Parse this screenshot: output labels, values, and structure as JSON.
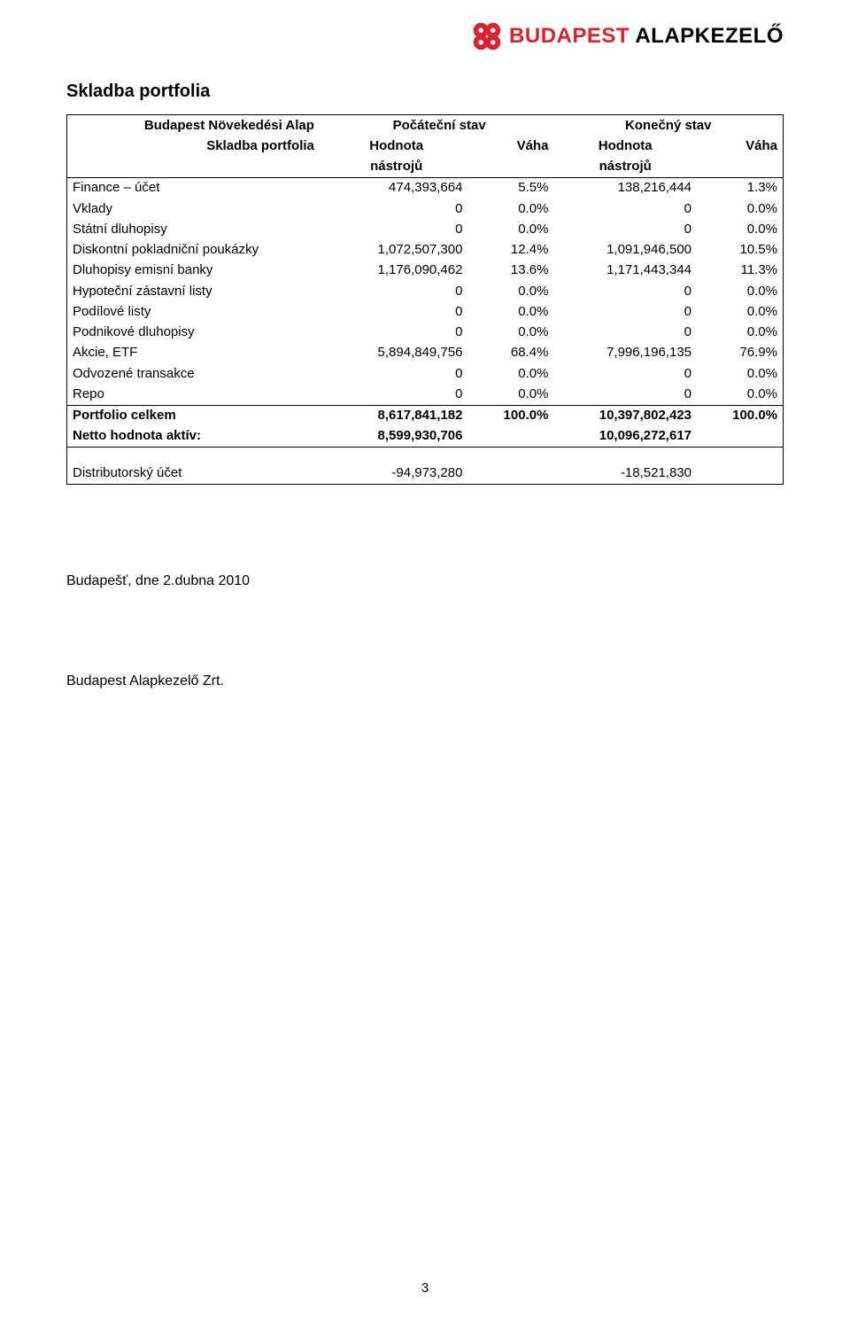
{
  "logo": {
    "wordmark_a": "BUDAPEST",
    "wordmark_b": "ALAPKEZELŐ",
    "brand_red": "#d9232e"
  },
  "section_title": "Skladba portfolia",
  "table": {
    "header1": {
      "fund": "Budapest Növekedési Alap",
      "start": "Počáteční stav",
      "end": "Konečný stav"
    },
    "header2": {
      "label": "Skladba portfolia",
      "hodn_a": "Hodnota",
      "vaha_a": "Váha",
      "hodn_b": "Hodnota",
      "vaha_b": "Váha",
      "nastroju": "nástrojů"
    },
    "rows": [
      {
        "label": "Finance – účet",
        "v1": "474,393,664",
        "p1": "5.5%",
        "v2": "138,216,444",
        "p2": "1.3%"
      },
      {
        "label": "Vklady",
        "v1": "0",
        "p1": "0.0%",
        "v2": "0",
        "p2": "0.0%"
      },
      {
        "label": "Státní dluhopisy",
        "v1": "0",
        "p1": "0.0%",
        "v2": "0",
        "p2": "0.0%"
      },
      {
        "label": "Diskontní pokladniční poukázky",
        "v1": "1,072,507,300",
        "p1": "12.4%",
        "v2": "1,091,946,500",
        "p2": "10.5%"
      },
      {
        "label": "Dluhopisy emisní banky",
        "v1": "1,176,090,462",
        "p1": "13.6%",
        "v2": "1,171,443,344",
        "p2": "11.3%"
      },
      {
        "label": "Hypoteční zástavní listy",
        "v1": "0",
        "p1": "0.0%",
        "v2": "0",
        "p2": "0.0%"
      },
      {
        "label": "Podílové listy",
        "v1": "0",
        "p1": "0.0%",
        "v2": "0",
        "p2": "0.0%"
      },
      {
        "label": "Podnikové dluhopisy",
        "v1": "0",
        "p1": "0.0%",
        "v2": "0",
        "p2": "0.0%"
      },
      {
        "label": "Akcie, ETF",
        "v1": "5,894,849,756",
        "p1": "68.4%",
        "v2": "7,996,196,135",
        "p2": "76.9%"
      },
      {
        "label": "Odvozené transakce",
        "v1": "0",
        "p1": "0.0%",
        "v2": "0",
        "p2": "0.0%"
      },
      {
        "label": "Repo",
        "v1": "0",
        "p1": "0.0%",
        "v2": "0",
        "p2": "0.0%"
      }
    ],
    "totals": [
      {
        "label": "Portfolio celkem",
        "v1": "8,617,841,182",
        "p1": "100.0%",
        "v2": "10,397,802,423",
        "p2": "100.0%",
        "bold": true
      },
      {
        "label": "Netto hodnota aktív:",
        "v1": "8,599,930,706",
        "p1": "",
        "v2": "10,096,272,617",
        "p2": "",
        "bold": true
      }
    ],
    "dist": {
      "label": "Distributorský účet",
      "v1": "-94,973,280",
      "v2": "-18,521,830"
    }
  },
  "footer": {
    "line1": "Budapešť, dne 2.dubna 2010",
    "line2": "Budapest Alapkezelő Zrt."
  },
  "page_number": "3"
}
